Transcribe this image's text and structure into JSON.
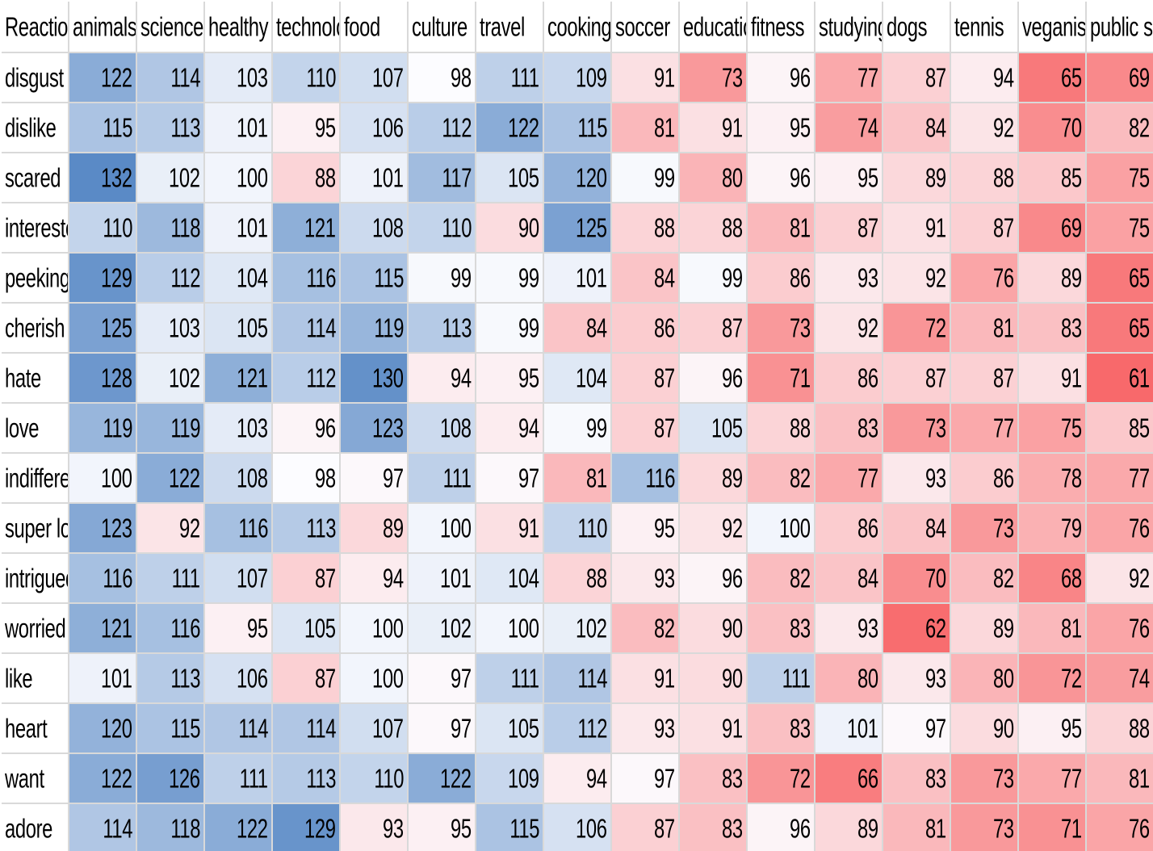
{
  "chart_data": {
    "type": "heatmap",
    "corner_label": "Reaction type",
    "columns": [
      "animals",
      "science",
      "healthy eating",
      "technology",
      "food",
      "culture",
      "travel",
      "cooking",
      "soccer",
      "education",
      "fitness",
      "studying",
      "dogs",
      "tennis",
      "veganism",
      "public speaking"
    ],
    "rows": [
      {
        "label": "disgust",
        "values": [
          122,
          114,
          103,
          110,
          107,
          98,
          111,
          109,
          91,
          73,
          96,
          77,
          87,
          94,
          65,
          69
        ]
      },
      {
        "label": "dislike",
        "values": [
          115,
          113,
          101,
          95,
          106,
          112,
          122,
          115,
          81,
          91,
          95,
          74,
          84,
          92,
          70,
          82
        ]
      },
      {
        "label": "scared",
        "values": [
          132,
          102,
          100,
          88,
          101,
          117,
          105,
          120,
          99,
          80,
          96,
          95,
          89,
          88,
          85,
          75
        ]
      },
      {
        "label": "interested",
        "values": [
          110,
          118,
          101,
          121,
          108,
          110,
          90,
          125,
          88,
          88,
          81,
          87,
          91,
          87,
          69,
          75
        ]
      },
      {
        "label": "peeking",
        "values": [
          129,
          112,
          104,
          116,
          115,
          99,
          99,
          101,
          84,
          99,
          86,
          93,
          92,
          76,
          89,
          65
        ]
      },
      {
        "label": "cherish",
        "values": [
          125,
          103,
          105,
          114,
          119,
          113,
          99,
          84,
          86,
          87,
          73,
          92,
          72,
          81,
          83,
          65
        ]
      },
      {
        "label": "hate",
        "values": [
          128,
          102,
          121,
          112,
          130,
          94,
          95,
          104,
          87,
          96,
          71,
          86,
          87,
          87,
          91,
          61
        ]
      },
      {
        "label": "love",
        "values": [
          119,
          119,
          103,
          96,
          123,
          108,
          94,
          99,
          87,
          105,
          88,
          83,
          73,
          77,
          75,
          85
        ]
      },
      {
        "label": "indifferent",
        "values": [
          100,
          122,
          108,
          98,
          97,
          111,
          97,
          81,
          116,
          89,
          82,
          77,
          93,
          86,
          78,
          77
        ]
      },
      {
        "label": "super love",
        "values": [
          123,
          92,
          116,
          113,
          89,
          100,
          91,
          110,
          95,
          92,
          100,
          86,
          84,
          73,
          79,
          76
        ]
      },
      {
        "label": "intrigued",
        "values": [
          116,
          111,
          107,
          87,
          94,
          101,
          104,
          88,
          93,
          96,
          82,
          84,
          70,
          82,
          68,
          92
        ]
      },
      {
        "label": "worried",
        "values": [
          121,
          116,
          95,
          105,
          100,
          102,
          100,
          102,
          82,
          90,
          83,
          93,
          62,
          89,
          81,
          76
        ]
      },
      {
        "label": "like",
        "values": [
          101,
          113,
          106,
          87,
          100,
          97,
          111,
          114,
          91,
          90,
          111,
          80,
          93,
          80,
          72,
          74
        ]
      },
      {
        "label": "heart",
        "values": [
          120,
          115,
          114,
          114,
          107,
          97,
          105,
          112,
          93,
          91,
          83,
          101,
          97,
          90,
          95,
          88
        ]
      },
      {
        "label": "want",
        "values": [
          122,
          126,
          111,
          113,
          110,
          122,
          109,
          94,
          97,
          83,
          72,
          66,
          83,
          73,
          77,
          81
        ]
      },
      {
        "label": "adore",
        "values": [
          114,
          118,
          122,
          129,
          93,
          95,
          115,
          106,
          87,
          83,
          96,
          89,
          81,
          73,
          71,
          76
        ]
      }
    ],
    "color_scale": {
      "low_color": "#f8696b",
      "mid_color": "#fcfcff",
      "high_color": "#5a8ac6",
      "low": 61,
      "mid": 98,
      "high": 132
    }
  }
}
